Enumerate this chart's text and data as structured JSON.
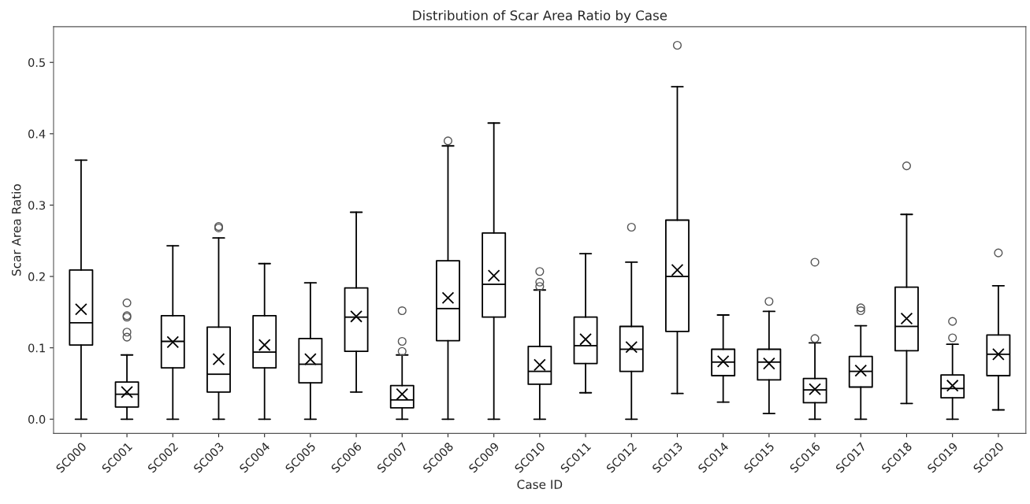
{
  "chart_data": {
    "type": "box",
    "title": "Distribution of Scar Area Ratio by Case",
    "xlabel": "Case ID",
    "ylabel": "Scar Area Ratio",
    "categories": [
      "SC000",
      "SC001",
      "SC002",
      "SC003",
      "SC004",
      "SC005",
      "SC006",
      "SC007",
      "SC008",
      "SC009",
      "SC010",
      "SC011",
      "SC012",
      "SC013",
      "SC014",
      "SC015",
      "SC016",
      "SC017",
      "SC018",
      "SC019",
      "SC020"
    ],
    "ylim": [
      -0.02,
      0.55
    ],
    "yticks": [
      {
        "value": 0,
        "label": "0.0"
      },
      0.1,
      0.2,
      0.3,
      0.4,
      0.5
    ],
    "grid": false,
    "marker": "circle",
    "boxes": [
      {
        "low": 0,
        "q1": 0.104,
        "median": 0.135,
        "q3": 0.209,
        "high": 0.363,
        "mean": 0.154
      },
      {
        "low": 0,
        "q1": 0.017,
        "median": 0.035,
        "q3": 0.052,
        "high": 0.09,
        "mean": 0.038,
        "outliers": [
          0.163,
          0.145,
          0.143,
          0.122,
          0.115
        ]
      },
      {
        "low": 0,
        "q1": 0.072,
        "median": 0.109,
        "q3": 0.145,
        "high": 0.243,
        "mean": 0.108
      },
      {
        "low": 0,
        "q1": 0.038,
        "median": 0.063,
        "q3": 0.129,
        "high": 0.254,
        "mean": 0.084,
        "outliers": [
          0.27,
          0.268
        ]
      },
      {
        "low": 0,
        "q1": 0.072,
        "median": 0.094,
        "q3": 0.145,
        "high": 0.218,
        "mean": 0.104
      },
      {
        "low": 0,
        "q1": 0.051,
        "median": 0.077,
        "q3": 0.113,
        "high": 0.191,
        "mean": 0.084
      },
      {
        "low": 0.038,
        "q1": 0.095,
        "median": 0.143,
        "q3": 0.184,
        "high": 0.29,
        "mean": 0.144
      },
      {
        "low": 0,
        "q1": 0.016,
        "median": 0.027,
        "q3": 0.047,
        "high": 0.09,
        "mean": 0.035,
        "outliers": [
          0.152,
          0.109,
          0.095
        ]
      },
      {
        "low": 0,
        "q1": 0.11,
        "median": 0.155,
        "q3": 0.222,
        "high": 0.383,
        "mean": 0.17,
        "outliers": [
          0.39
        ]
      },
      {
        "low": 0,
        "q1": 0.143,
        "median": 0.189,
        "q3": 0.261,
        "high": 0.415,
        "mean": 0.201
      },
      {
        "low": 0,
        "q1": 0.049,
        "median": 0.067,
        "q3": 0.102,
        "high": 0.181,
        "mean": 0.076,
        "outliers": [
          0.207,
          0.192,
          0.186
        ]
      },
      {
        "low": 0.037,
        "q1": 0.078,
        "median": 0.103,
        "q3": 0.143,
        "high": 0.232,
        "mean": 0.112
      },
      {
        "low": 0,
        "q1": 0.067,
        "median": 0.098,
        "q3": 0.13,
        "high": 0.22,
        "mean": 0.101,
        "outliers": [
          0.269
        ]
      },
      {
        "low": 0.036,
        "q1": 0.123,
        "median": 0.2,
        "q3": 0.279,
        "high": 0.466,
        "mean": 0.209,
        "outliers": [
          0.524
        ]
      },
      {
        "low": 0.024,
        "q1": 0.061,
        "median": 0.08,
        "q3": 0.098,
        "high": 0.146,
        "mean": 0.081
      },
      {
        "low": 0.008,
        "q1": 0.055,
        "median": 0.08,
        "q3": 0.098,
        "high": 0.151,
        "mean": 0.078,
        "outliers": [
          0.165
        ]
      },
      {
        "low": 0,
        "q1": 0.023,
        "median": 0.041,
        "q3": 0.057,
        "high": 0.107,
        "mean": 0.042,
        "outliers": [
          0.22,
          0.113
        ]
      },
      {
        "low": 0,
        "q1": 0.045,
        "median": 0.067,
        "q3": 0.088,
        "high": 0.131,
        "mean": 0.068,
        "outliers": [
          0.156,
          0.152
        ]
      },
      {
        "low": 0.022,
        "q1": 0.096,
        "median": 0.13,
        "q3": 0.185,
        "high": 0.287,
        "mean": 0.141,
        "outliers": [
          0.355
        ]
      },
      {
        "low": 0,
        "q1": 0.03,
        "median": 0.043,
        "q3": 0.062,
        "high": 0.105,
        "mean": 0.047,
        "outliers": [
          0.137,
          0.114
        ]
      },
      {
        "low": 0.013,
        "q1": 0.061,
        "median": 0.091,
        "q3": 0.118,
        "high": 0.187,
        "mean": 0.091,
        "outliers": [
          0.233
        ]
      }
    ]
  }
}
